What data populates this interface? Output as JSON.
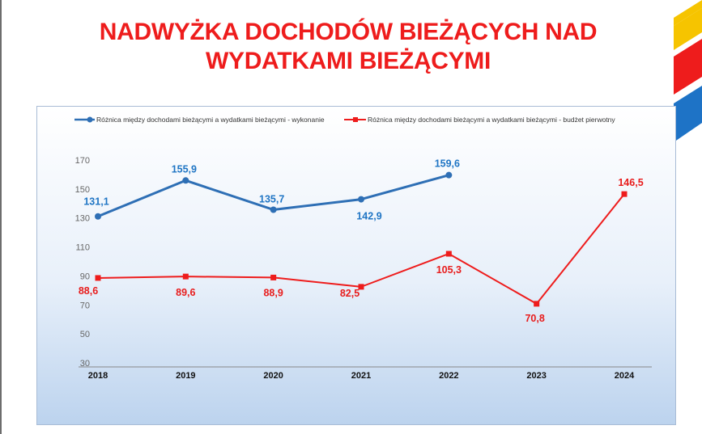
{
  "page": {
    "title_line1": "NADWYŻKA DOCHODÓW BIEŻĄCYCH NAD",
    "title_line2": "WYDATKAMI BIEŻĄCYMI",
    "title_color": "#ee1c1c",
    "deco_colors": [
      "#f6c400",
      "#ee1c1c",
      "#1e73c6"
    ]
  },
  "chart_data": {
    "type": "line",
    "title": "",
    "xlabel": "",
    "ylabel": "",
    "categories": [
      "2018",
      "2019",
      "2020",
      "2021",
      "2022",
      "2023",
      "2024"
    ],
    "ylim": [
      30,
      170
    ],
    "yticks": [
      30,
      50,
      70,
      90,
      110,
      130,
      150,
      170
    ],
    "grid": false,
    "legend_position": "top",
    "series": [
      {
        "name": "Różnica między dochodami bieżącymi a wydatkami bieżącymi - wykonanie",
        "color": "#2e6fb5",
        "label_color": "#1f75c4",
        "marker": "circle",
        "values": [
          131.1,
          155.9,
          135.7,
          142.9,
          159.6,
          null,
          null
        ],
        "labels": [
          "131,1",
          "155,9",
          "135,7",
          "142,9",
          "159,6",
          "",
          ""
        ]
      },
      {
        "name": "Różnica między dochodami bieżącymi a wydatkami bieżącymi - budżet pierwotny",
        "color": "#ee1c1c",
        "label_color": "#e81c1c",
        "marker": "square",
        "values": [
          88.6,
          89.6,
          88.9,
          82.5,
          105.3,
          70.8,
          146.5
        ],
        "labels": [
          "88,6",
          "89,6",
          "88,9",
          "82,5",
          "105,3",
          "70,8",
          "146,5"
        ]
      }
    ]
  }
}
